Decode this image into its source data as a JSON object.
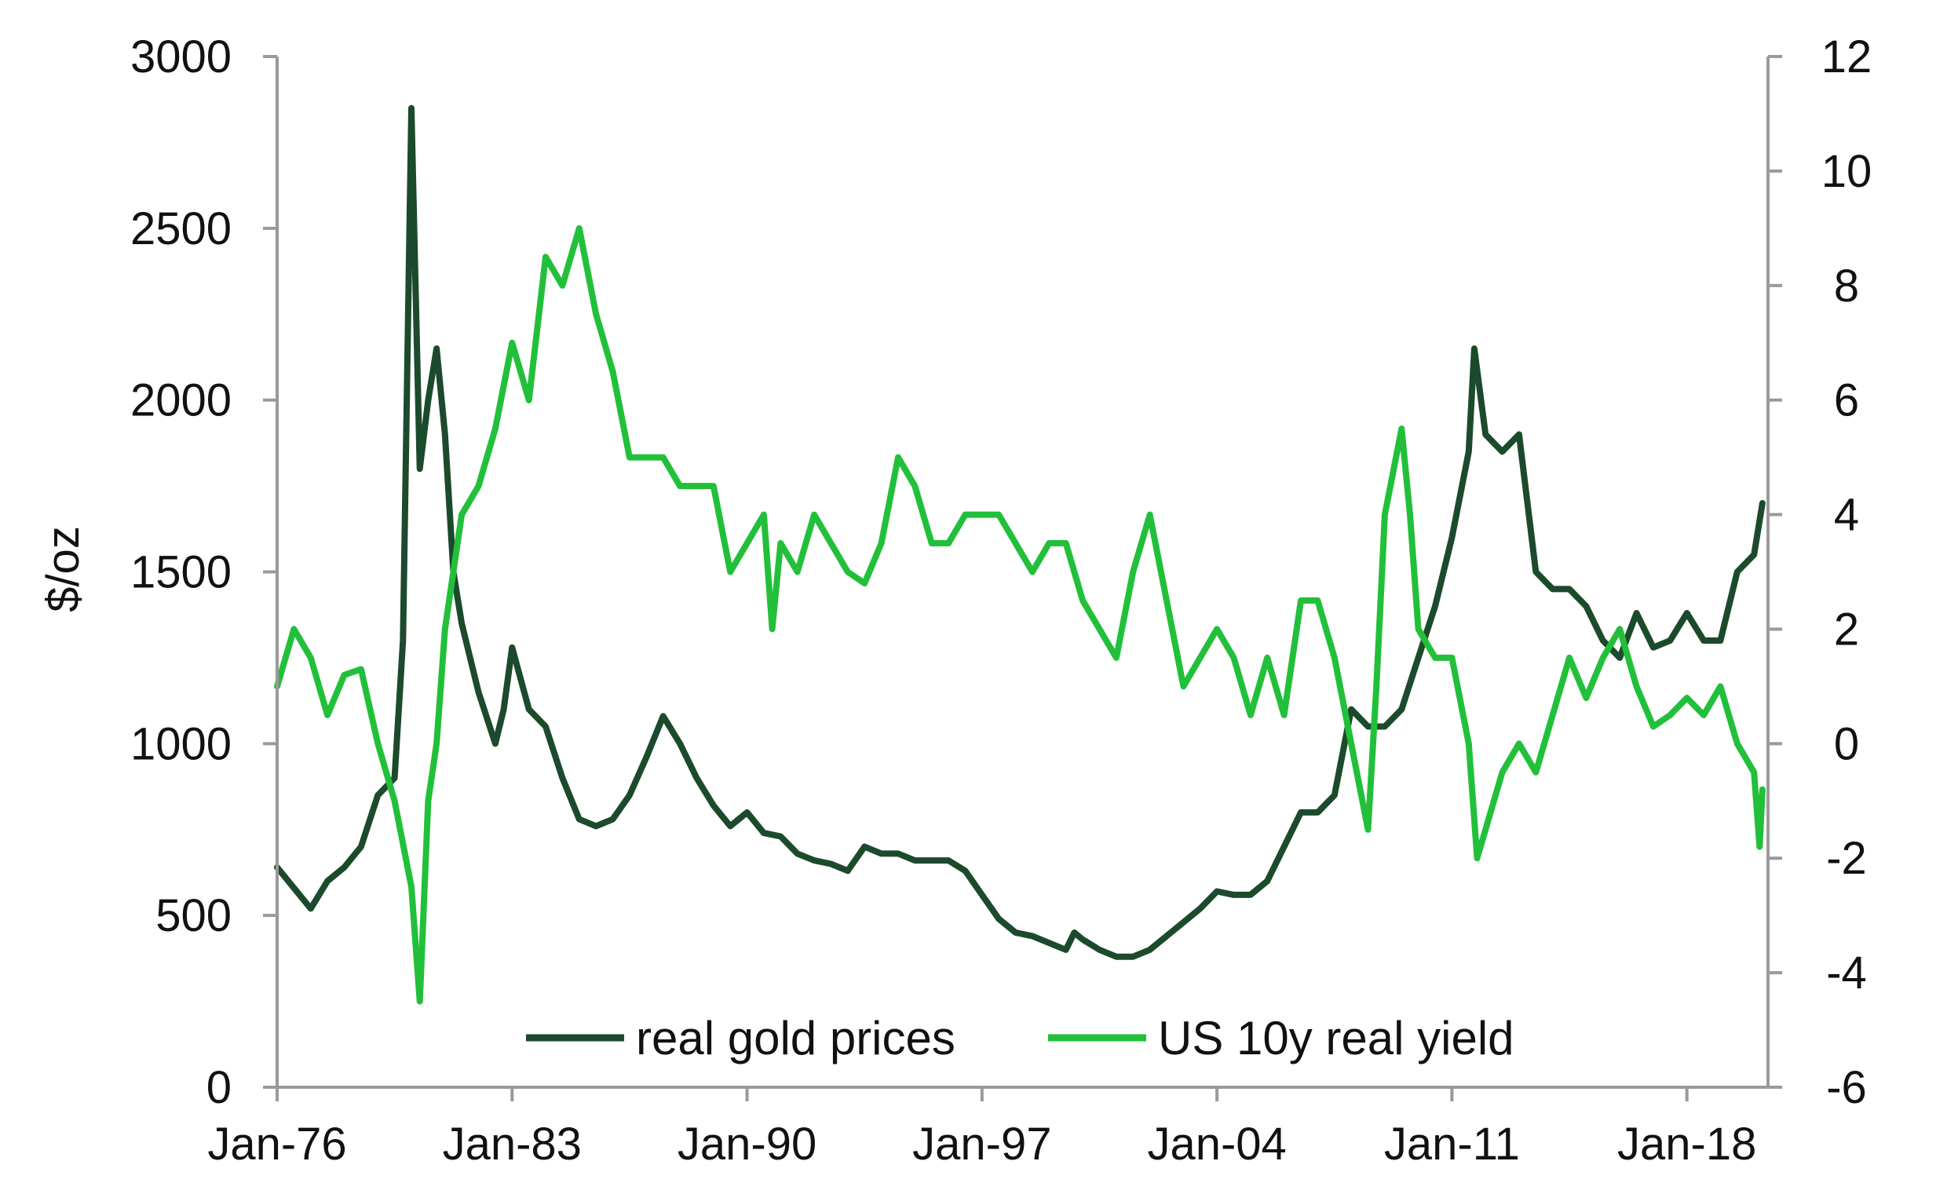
{
  "chart_data": {
    "type": "line",
    "title": "",
    "ylabel": "$/oz",
    "y2label": "",
    "xlim": [
      "1976-01",
      "2020-06"
    ],
    "ylim": [
      0,
      3000
    ],
    "y2lim": [
      -6,
      12
    ],
    "y_ticks": [
      "0",
      "500",
      "1000",
      "1500",
      "2000",
      "2500",
      "3000"
    ],
    "y2_ticks": [
      "-6",
      "-4",
      "-2",
      "0",
      "2",
      "4",
      "6",
      "8",
      "10",
      "12"
    ],
    "x_ticks": [
      {
        "label": "Jan-76",
        "date": "1976-01"
      },
      {
        "label": "Jan-83",
        "date": "1983-01"
      },
      {
        "label": "Jan-90",
        "date": "1990-01"
      },
      {
        "label": "Jan-97",
        "date": "1997-01"
      },
      {
        "label": "Jan-04",
        "date": "2004-01"
      },
      {
        "label": "Jan-11",
        "date": "2011-01"
      },
      {
        "label": "Jan-18",
        "date": "2018-01"
      }
    ],
    "legend": {
      "position": "bottom-center"
    },
    "grid": false,
    "series": [
      {
        "name": "real gold prices",
        "axis": "left",
        "color": "#1c4a2c",
        "points": [
          [
            "1976-01",
            640
          ],
          [
            "1976-07",
            580
          ],
          [
            "1977-01",
            520
          ],
          [
            "1977-07",
            600
          ],
          [
            "1978-01",
            640
          ],
          [
            "1978-07",
            700
          ],
          [
            "1979-01",
            850
          ],
          [
            "1979-07",
            900
          ],
          [
            "1979-10",
            1300
          ],
          [
            "1980-01",
            2850
          ],
          [
            "1980-04",
            1800
          ],
          [
            "1980-07",
            2000
          ],
          [
            "1980-10",
            2150
          ],
          [
            "1981-01",
            1900
          ],
          [
            "1981-04",
            1500
          ],
          [
            "1981-07",
            1350
          ],
          [
            "1981-10",
            1250
          ],
          [
            "1982-01",
            1150
          ],
          [
            "1982-07",
            1000
          ],
          [
            "1982-10",
            1100
          ],
          [
            "1983-01",
            1280
          ],
          [
            "1983-07",
            1100
          ],
          [
            "1984-01",
            1050
          ],
          [
            "1984-07",
            900
          ],
          [
            "1985-01",
            780
          ],
          [
            "1985-07",
            760
          ],
          [
            "1986-01",
            780
          ],
          [
            "1986-07",
            850
          ],
          [
            "1987-01",
            960
          ],
          [
            "1987-07",
            1080
          ],
          [
            "1988-01",
            1000
          ],
          [
            "1988-07",
            900
          ],
          [
            "1989-01",
            820
          ],
          [
            "1989-07",
            760
          ],
          [
            "1990-01",
            800
          ],
          [
            "1990-07",
            740
          ],
          [
            "1991-01",
            730
          ],
          [
            "1991-07",
            680
          ],
          [
            "1992-01",
            660
          ],
          [
            "1992-07",
            650
          ],
          [
            "1993-01",
            630
          ],
          [
            "1993-07",
            700
          ],
          [
            "1994-01",
            680
          ],
          [
            "1994-07",
            680
          ],
          [
            "1995-01",
            660
          ],
          [
            "1995-07",
            660
          ],
          [
            "1996-01",
            660
          ],
          [
            "1996-07",
            630
          ],
          [
            "1997-01",
            560
          ],
          [
            "1997-07",
            490
          ],
          [
            "1998-01",
            450
          ],
          [
            "1998-07",
            440
          ],
          [
            "1999-01",
            420
          ],
          [
            "1999-07",
            400
          ],
          [
            "1999-10",
            450
          ],
          [
            "2000-01",
            430
          ],
          [
            "2000-07",
            400
          ],
          [
            "2001-01",
            380
          ],
          [
            "2001-07",
            380
          ],
          [
            "2002-01",
            400
          ],
          [
            "2002-07",
            440
          ],
          [
            "2003-01",
            480
          ],
          [
            "2003-07",
            520
          ],
          [
            "2004-01",
            570
          ],
          [
            "2004-07",
            560
          ],
          [
            "2005-01",
            560
          ],
          [
            "2005-07",
            600
          ],
          [
            "2006-01",
            700
          ],
          [
            "2006-07",
            800
          ],
          [
            "2007-01",
            800
          ],
          [
            "2007-07",
            850
          ],
          [
            "2008-01",
            1100
          ],
          [
            "2008-07",
            1050
          ],
          [
            "2009-01",
            1050
          ],
          [
            "2009-07",
            1100
          ],
          [
            "2010-01",
            1250
          ],
          [
            "2010-07",
            1400
          ],
          [
            "2011-01",
            1600
          ],
          [
            "2011-07",
            1850
          ],
          [
            "2011-09",
            2150
          ],
          [
            "2012-01",
            1900
          ],
          [
            "2012-07",
            1850
          ],
          [
            "2013-01",
            1900
          ],
          [
            "2013-07",
            1500
          ],
          [
            "2014-01",
            1450
          ],
          [
            "2014-07",
            1450
          ],
          [
            "2015-01",
            1400
          ],
          [
            "2015-07",
            1300
          ],
          [
            "2016-01",
            1250
          ],
          [
            "2016-07",
            1380
          ],
          [
            "2017-01",
            1280
          ],
          [
            "2017-07",
            1300
          ],
          [
            "2018-01",
            1380
          ],
          [
            "2018-07",
            1300
          ],
          [
            "2019-01",
            1300
          ],
          [
            "2019-07",
            1500
          ],
          [
            "2020-01",
            1550
          ],
          [
            "2020-04",
            1700
          ]
        ]
      },
      {
        "name": "US 10y real yield",
        "axis": "right",
        "color": "#22c03a",
        "points": [
          [
            "1976-01",
            1.0
          ],
          [
            "1976-07",
            2.0
          ],
          [
            "1977-01",
            1.5
          ],
          [
            "1977-07",
            0.5
          ],
          [
            "1978-01",
            1.2
          ],
          [
            "1978-07",
            1.3
          ],
          [
            "1979-01",
            0.0
          ],
          [
            "1979-07",
            -1.0
          ],
          [
            "1980-01",
            -2.5
          ],
          [
            "1980-04",
            -4.5
          ],
          [
            "1980-07",
            -1.0
          ],
          [
            "1980-10",
            0.0
          ],
          [
            "1981-01",
            2.0
          ],
          [
            "1981-07",
            4.0
          ],
          [
            "1982-01",
            4.5
          ],
          [
            "1982-07",
            5.5
          ],
          [
            "1983-01",
            7.0
          ],
          [
            "1983-07",
            6.0
          ],
          [
            "1984-01",
            8.5
          ],
          [
            "1984-07",
            8.0
          ],
          [
            "1985-01",
            9.0
          ],
          [
            "1985-07",
            7.5
          ],
          [
            "1986-01",
            6.5
          ],
          [
            "1986-07",
            5.0
          ],
          [
            "1987-01",
            5.0
          ],
          [
            "1987-07",
            5.0
          ],
          [
            "1988-01",
            4.5
          ],
          [
            "1988-07",
            4.5
          ],
          [
            "1989-01",
            4.5
          ],
          [
            "1989-07",
            3.0
          ],
          [
            "1990-01",
            3.5
          ],
          [
            "1990-07",
            4.0
          ],
          [
            "1990-10",
            2.0
          ],
          [
            "1991-01",
            3.5
          ],
          [
            "1991-07",
            3.0
          ],
          [
            "1992-01",
            4.0
          ],
          [
            "1992-07",
            3.5
          ],
          [
            "1993-01",
            3.0
          ],
          [
            "1993-07",
            2.8
          ],
          [
            "1994-01",
            3.5
          ],
          [
            "1994-07",
            5.0
          ],
          [
            "1995-01",
            4.5
          ],
          [
            "1995-07",
            3.5
          ],
          [
            "1996-01",
            3.5
          ],
          [
            "1996-07",
            4.0
          ],
          [
            "1997-01",
            4.0
          ],
          [
            "1997-07",
            4.0
          ],
          [
            "1998-01",
            3.5
          ],
          [
            "1998-07",
            3.0
          ],
          [
            "1999-01",
            3.5
          ],
          [
            "1999-07",
            3.5
          ],
          [
            "2000-01",
            2.5
          ],
          [
            "2000-07",
            2.0
          ],
          [
            "2001-01",
            1.5
          ],
          [
            "2001-07",
            3.0
          ],
          [
            "2002-01",
            4.0
          ],
          [
            "2002-07",
            2.5
          ],
          [
            "2003-01",
            1.0
          ],
          [
            "2003-07",
            1.5
          ],
          [
            "2004-01",
            2.0
          ],
          [
            "2004-07",
            1.5
          ],
          [
            "2005-01",
            0.5
          ],
          [
            "2005-07",
            1.5
          ],
          [
            "2006-01",
            0.5
          ],
          [
            "2006-07",
            2.5
          ],
          [
            "2007-01",
            2.5
          ],
          [
            "2007-07",
            1.5
          ],
          [
            "2008-01",
            0.0
          ],
          [
            "2008-07",
            -1.5
          ],
          [
            "2008-10",
            1.0
          ],
          [
            "2009-01",
            4.0
          ],
          [
            "2009-07",
            5.5
          ],
          [
            "2009-10",
            4.0
          ],
          [
            "2010-01",
            2.0
          ],
          [
            "2010-07",
            1.5
          ],
          [
            "2011-01",
            1.5
          ],
          [
            "2011-07",
            0.0
          ],
          [
            "2011-10",
            -2.0
          ],
          [
            "2012-01",
            -1.5
          ],
          [
            "2012-07",
            -0.5
          ],
          [
            "2013-01",
            0.0
          ],
          [
            "2013-07",
            -0.5
          ],
          [
            "2014-01",
            0.5
          ],
          [
            "2014-07",
            1.5
          ],
          [
            "2015-01",
            0.8
          ],
          [
            "2015-07",
            1.5
          ],
          [
            "2016-01",
            2.0
          ],
          [
            "2016-07",
            1.0
          ],
          [
            "2017-01",
            0.3
          ],
          [
            "2017-07",
            0.5
          ],
          [
            "2018-01",
            0.8
          ],
          [
            "2018-07",
            0.5
          ],
          [
            "2019-01",
            1.0
          ],
          [
            "2019-07",
            0.0
          ],
          [
            "2020-01",
            -0.5
          ],
          [
            "2020-03",
            -1.8
          ],
          [
            "2020-04",
            -0.8
          ]
        ]
      }
    ]
  }
}
